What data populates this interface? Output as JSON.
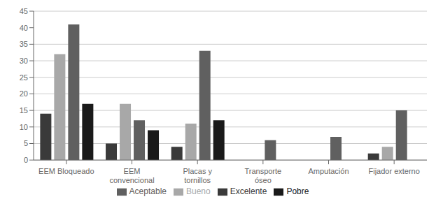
{
  "chart_data": {
    "type": "bar",
    "categories": [
      "EEM Bloqueado",
      "EEM\nconvencional",
      "Placas y\ntornillos",
      "Transporte\nóseo",
      "Amputación",
      "Fijador externo"
    ],
    "series": [
      {
        "name": "Excelente",
        "color": "#3a3a3a",
        "values": [
          14,
          5,
          4,
          0,
          0,
          2
        ]
      },
      {
        "name": "Bueno",
        "color": "#a8a8a8",
        "values": [
          32,
          17,
          11,
          0,
          0,
          4
        ]
      },
      {
        "name": "Aceptable",
        "color": "#606060",
        "values": [
          41,
          12,
          33,
          6,
          7,
          15
        ]
      },
      {
        "name": "Pobre",
        "color": "#1a1a1a",
        "values": [
          17,
          9,
          12,
          0,
          0,
          0
        ]
      }
    ],
    "ylim": [
      0,
      45
    ],
    "yticks": [
      0,
      5,
      10,
      15,
      20,
      25,
      30,
      35,
      40,
      45
    ],
    "grid": true,
    "legend": "bottom"
  }
}
